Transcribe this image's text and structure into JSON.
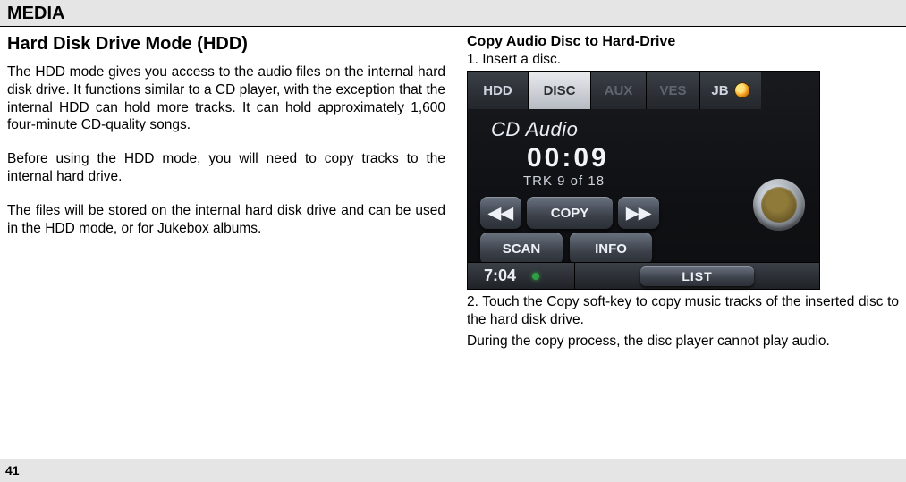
{
  "header": {
    "title": "MEDIA"
  },
  "left": {
    "section_title": "Hard Disk Drive Mode (HDD)",
    "p1": "The HDD mode gives you access to the audio files on the internal hard disk drive. It functions similar to a CD player, with the exception that the internal HDD can hold more tracks. It can hold approximately 1,600 four-minute CD-quality songs.",
    "p2": "Before using the HDD mode, you will need to copy tracks to the internal hard drive.",
    "p3": "The files will be stored on the internal hard disk drive and can be used in the HDD mode, or for Jukebox albums."
  },
  "right": {
    "sub_h": "Copy Audio Disc to Hard-Drive",
    "step1": "1. Insert a disc.",
    "step2": "2. Touch the Copy soft-key to copy music tracks of the inserted disc to the hard disk drive.",
    "note": "During the copy process, the disc player cannot play audio."
  },
  "shot": {
    "tabs": {
      "hdd": "HDD",
      "disc": "DISC",
      "aux": "AUX",
      "ves": "VES",
      "jb": "JB"
    },
    "now_title": "CD Audio",
    "now_time": "00:09",
    "now_trk": "TRK 9 of 18",
    "prev": "◀◀",
    "copy": "COPY",
    "next": "▶▶",
    "scan": "SCAN",
    "info": "INFO",
    "clock": "7:04",
    "list": "LIST"
  },
  "page_number": "41"
}
